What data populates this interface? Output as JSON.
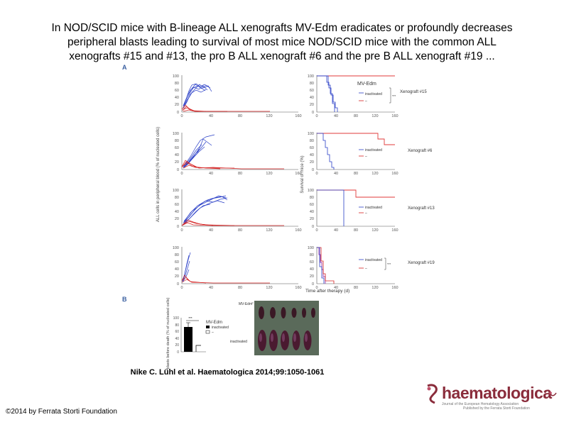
{
  "slide": {
    "title_lines": [
      "In NOD/SCID mice with B-lineage ALL xenografts MV-Edm eradicates or profoundly decreases",
      "peripheral blasts leading to survival of most mice NOD/SCID mice with the common ALL",
      "xenografts #15 and #13, the pro B ALL xenograft #6 and the pre B ALL xenograft #19 ..."
    ],
    "citation": "Nike C. Lühl et al. Haematologica 2014;99:1050-1061",
    "copyright": "©2014 by Ferrata Storti Foundation"
  },
  "figure": {
    "panel_a_label": "A",
    "panel_b_label": "B",
    "left_ylabel": "ALL cells in peripheral blood (% of nucleated cells)",
    "right_ylabel": "Survival of mice (%)",
    "xlabel": "Time after therapy (d)",
    "legend_mv": "MV-Edm",
    "legend_inact": "inactivated",
    "legend_dash": "–",
    "sig_label": "***",
    "xenografts": [
      "Xenograft #15",
      "Xenograft #6",
      "Xenograft #13",
      "Xenograft #19"
    ],
    "yticks": [
      "100",
      "80",
      "60",
      "40",
      "20",
      "0"
    ],
    "xticks": [
      "0",
      "40",
      "80",
      "120",
      "160"
    ],
    "panel_b": {
      "ylabel": "blasts before death (% of nucleated cells)",
      "legend_title": "MV-Edm",
      "legend_inact": "inactivated",
      "legend_dash": "–",
      "yticks": [
        "100",
        "80",
        "60",
        "40",
        "20",
        "0"
      ],
      "photo_top_label": "MV-Edm",
      "photo_bottom_label": "inactivated",
      "sig_label": "***"
    }
  },
  "logo": {
    "word": "haematologica",
    "tag1": "Journal of the European Hematology Association",
    "tag2": "Published by the Ferrata Storti Foundation"
  },
  "colors": {
    "mv": "#2a3fc7",
    "inact": "#d42020",
    "logo": "#8a2c3b",
    "survival_mv": "#e03a3a",
    "survival_19": "#9b3fb0"
  }
}
